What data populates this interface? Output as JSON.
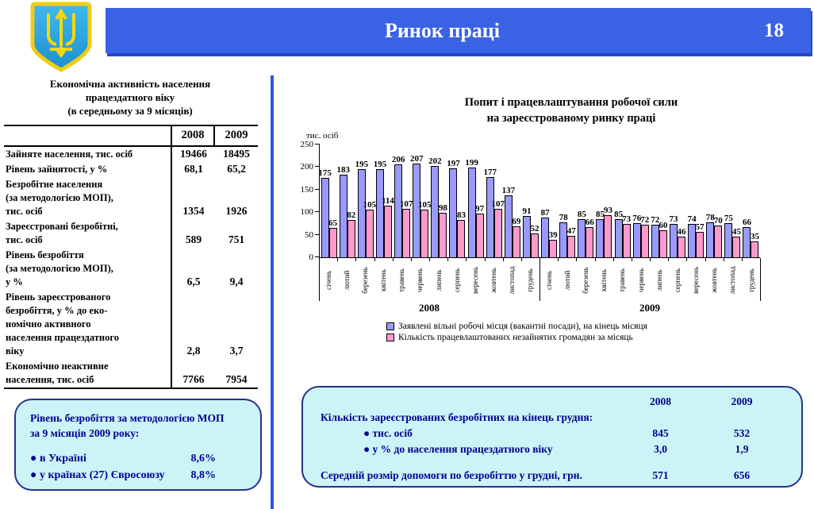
{
  "header": {
    "title": "Ринок праці",
    "page_number": "18"
  },
  "left_panel": {
    "table_title": "Економічна активність населення\nпрацездатного віку\n(в середньому за 9 місяців)",
    "table": {
      "col_headers": [
        "2008",
        "2009"
      ],
      "rows": [
        {
          "label": "Зайняте населення, тис. осіб",
          "y2008": "19466",
          "y2009": "18495"
        },
        {
          "label": "Рівень зайнятості, у %",
          "y2008": "68,1",
          "y2009": "65,2"
        },
        {
          "label": "Безробітне населення\n(за методологією МОП),\nтис. осіб",
          "y2008": "1354",
          "y2009": "1926"
        },
        {
          "label": "Зареєстровані безробітні,\nтис. осіб",
          "y2008": "589",
          "y2009": "751"
        },
        {
          "label": "Рівень безробіття\n(за методологією МОП),\n у %",
          "y2008": "6,5",
          "y2009": "9,4"
        },
        {
          "label": "Рівень зареєстрованого\nбезробіття, у % до еко-\nномічно активного\nнаселення працездатного\nвіку",
          "y2008": "2,8",
          "y2009": "3,7"
        },
        {
          "label": "Економічно неактивне\nнаселення, тис. осіб",
          "y2008": "7766",
          "y2009": "7954"
        }
      ]
    },
    "ilo_box": {
      "title": "Рівень безробіття за методологією МОП\nза  9 місяців 2009 року:",
      "items": [
        {
          "label": "● в Україні",
          "value": "8,6%"
        },
        {
          "label": "● у країнах (27) Євросоюзу",
          "value": "8,8%"
        }
      ]
    }
  },
  "chart_data": {
    "type": "bar",
    "title": "Попит і  працевлаштування робочої сили\nна зареєстрованому ринку праці",
    "ylabel": "тис. осіб",
    "xlabel": "",
    "ylim": [
      0,
      250
    ],
    "yticks": [
      0,
      50,
      100,
      150,
      200,
      250
    ],
    "grid": false,
    "legend_position": "bottom",
    "group_labels": [
      "2008",
      "2009"
    ],
    "categories": [
      "січень",
      "лютий",
      "березень",
      "квітень",
      "травень",
      "червень",
      "липень",
      "серпень",
      "вересень",
      "жовтень",
      "листопад",
      "грудень",
      "січень",
      "лютий",
      "березень",
      "квітень",
      "травень",
      "червень",
      "липень",
      "серпень",
      "вересень",
      "жовтень",
      "листопад",
      "грудень"
    ],
    "series": [
      {
        "name": "Заявлені вільні робочі місця (вакантні посади), на кінець місяця",
        "color": "#9999ff",
        "values": [
          175,
          183,
          195,
          195,
          206,
          207,
          202,
          197,
          199,
          177,
          137,
          91,
          87,
          78,
          85,
          85,
          85,
          76,
          72,
          73,
          74,
          78,
          75,
          66
        ]
      },
      {
        "name": "Кількість працевлаштованих незайнятих громадян за місяць",
        "color": "#ff99cc",
        "values": [
          65,
          82,
          105,
          114,
          107,
          105,
          98,
          83,
          97,
          107,
          69,
          52,
          39,
          47,
          66,
          93,
          73,
          72,
          60,
          46,
          57,
          70,
          45,
          35
        ]
      }
    ]
  },
  "bottom_box": {
    "col_headers": [
      "2008",
      "2009"
    ],
    "rows": [
      {
        "label": "Кількість зареєстрованих безробітних на кінець грудня:",
        "y2008": "",
        "y2009": ""
      },
      {
        "label": "● тис. осіб",
        "y2008": "845",
        "y2009": "532"
      },
      {
        "label": "● у % до населення працездатного віку",
        "y2008": "3,0",
        "y2009": "1,9"
      },
      {
        "label": "Середній розмір допомоги по безробіттю у грудні, грн.",
        "y2008": "571",
        "y2009": "656"
      }
    ]
  },
  "colors": {
    "header_blue": "#3a62e4",
    "box_background": "#ccf4f6",
    "box_border": "#28328c",
    "box_text": "#000090",
    "bar_blue": "#9999ff",
    "bar_pink": "#ff99cc"
  }
}
